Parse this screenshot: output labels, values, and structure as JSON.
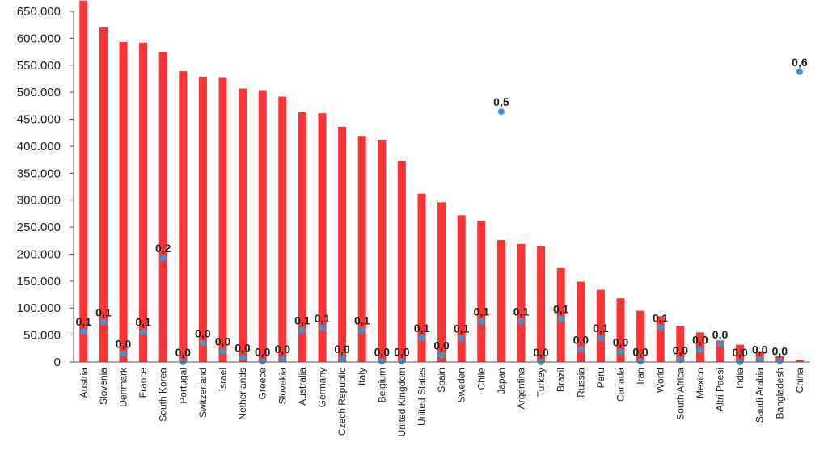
{
  "chart_data": {
    "type": "bar",
    "categories": [
      "Austria",
      "Slovenia",
      "Denmark",
      "France",
      "South Korea",
      "Portugal",
      "Switzerland",
      "Israel",
      "Netherlands",
      "Greece",
      "Slovakia",
      "Australia",
      "Germany",
      "Czech Republic",
      "Italy",
      "Belgium",
      "United Kingdom",
      "United States",
      "Spain",
      "Sweden",
      "Chile",
      "Japan",
      "Argentina",
      "Turkey",
      "Brazil",
      "Russia",
      "Peru",
      "Canada",
      "Iran",
      "World",
      "South Africa",
      "Mexico",
      "Altri Paesi",
      "India",
      "Saudi Arabia",
      "Bangladesh",
      "China"
    ],
    "ylim": [
      0,
      650000
    ],
    "yticks": [
      0,
      50000,
      100000,
      150000,
      200000,
      250000,
      300000,
      350000,
      400000,
      450000,
      500000,
      550000,
      600000,
      650000
    ],
    "ytick_labels": [
      "0",
      "50.000",
      "100.000",
      "150.000",
      "200.000",
      "250.000",
      "300.000",
      "350.000",
      "400.000",
      "450.000",
      "500.000",
      "550.000",
      "600.000",
      "650.000"
    ],
    "series": [
      {
        "name": "bars",
        "color": "#ff3333",
        "values": [
          670000,
          620000,
          593000,
          592000,
          575000,
          539000,
          529000,
          528000,
          507000,
          504000,
          492000,
          463000,
          461000,
          436000,
          419000,
          412000,
          373000,
          312000,
          296000,
          272000,
          262000,
          226000,
          219000,
          215000,
          174000,
          149000,
          134000,
          118000,
          95000,
          85000,
          67000,
          55000,
          40000,
          32000,
          20000,
          11000,
          3000
        ]
      },
      {
        "name": "points",
        "color": "#3a97d4",
        "positions": [
          57000,
          74000,
          16000,
          56000,
          193000,
          0,
          35000,
          20000,
          8000,
          1000,
          6000,
          59000,
          63000,
          6000,
          59000,
          1000,
          1000,
          45000,
          13000,
          44000,
          76000,
          464000,
          76000,
          0,
          80000,
          23000,
          45000,
          19000,
          1000,
          64000,
          4000,
          23000,
          33000,
          0,
          5000,
          2000,
          538000
        ],
        "labels": [
          "0,1",
          "0,1",
          "0,0",
          "0,1",
          "0,2",
          "0,0",
          "0,0",
          "0,0",
          "0,0",
          "0,0",
          "0,0",
          "0,1",
          "0,1",
          "0,0",
          "0,1",
          "0,0",
          "0,0",
          "0,1",
          "0,0",
          "0,1",
          "0,1",
          "0,5",
          "0,1",
          "0,0",
          "0,1",
          "0,0",
          "0,1",
          "0,0",
          "0,0",
          "0,1",
          "0,0",
          "0,0",
          "0,0",
          "0,0",
          "0,0",
          "0,0",
          "0,6"
        ]
      }
    ]
  }
}
